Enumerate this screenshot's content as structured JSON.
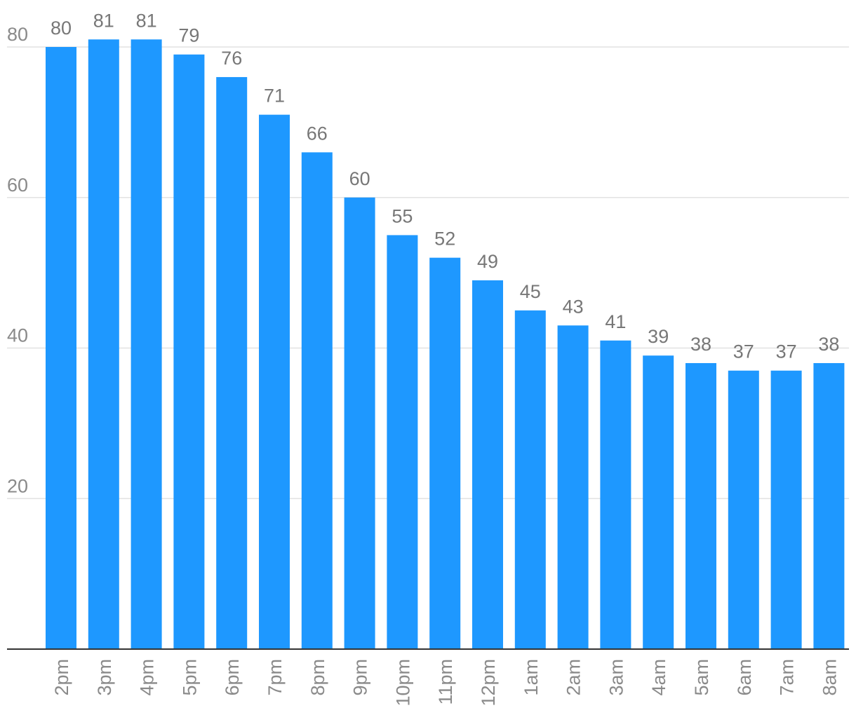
{
  "chart_data": {
    "type": "bar",
    "title": "",
    "xlabel": "",
    "ylabel": "",
    "categories": [
      "2pm",
      "3pm",
      "4pm",
      "5pm",
      "6pm",
      "7pm",
      "8pm",
      "9pm",
      "10pm",
      "11pm",
      "12pm",
      "1am",
      "2am",
      "3am",
      "4am",
      "5am",
      "6am",
      "7am",
      "8am"
    ],
    "values": [
      80,
      81,
      81,
      79,
      76,
      71,
      66,
      60,
      55,
      52,
      49,
      45,
      43,
      41,
      39,
      38,
      37,
      37,
      38
    ],
    "ylim": [
      0,
      80
    ],
    "yticks": [
      20,
      40,
      60,
      80
    ],
    "grid": true,
    "bar_color": "#1e98ff",
    "data_labels": true
  }
}
